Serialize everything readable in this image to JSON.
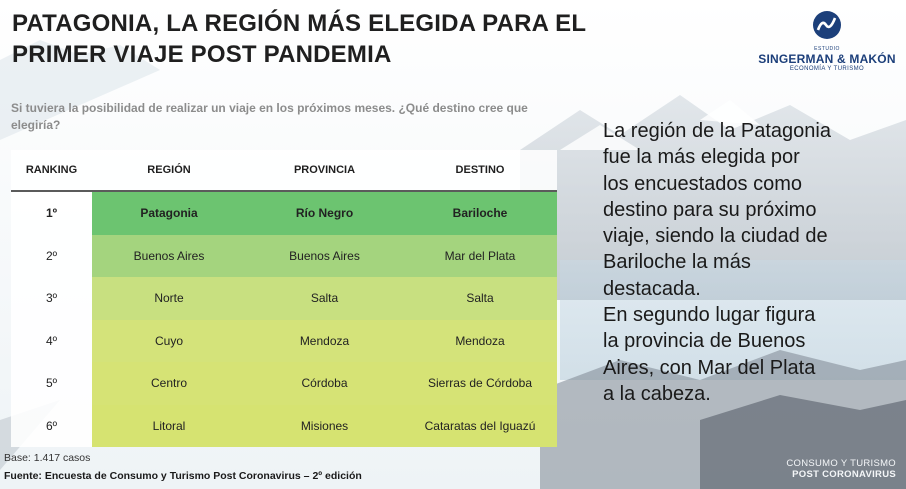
{
  "title_line1": "PATAGONIA, LA REGIÓN MÁS ELEGIDA PARA EL",
  "title_line2": "PRIMER VIAJE POST PANDEMIA",
  "logo": {
    "small_text": "ESTUDIO",
    "name": "SINGERMAN & MAKÓN",
    "subtitle": "ECONOMÍA Y TURISMO",
    "color": "#1c3f7a"
  },
  "question": "Si tuviera la posibilidad de realizar un viaje en los próximos meses. ¿Qué destino cree que elegiría?",
  "table": {
    "headers": {
      "ranking": "RANKING",
      "region": "REGIÓN",
      "provincia": "PROVINCIA",
      "destino": "DESTINO"
    },
    "rows": [
      {
        "rank": "1º",
        "region": "Patagonia",
        "provincia": "Río Negro",
        "destino": "Bariloche",
        "color": "#6cc470"
      },
      {
        "rank": "2º",
        "region": "Buenos Aires",
        "provincia": "Buenos Aires",
        "destino": "Mar del Plata",
        "color": "#a4d47e"
      },
      {
        "rank": "3º",
        "region": "Norte",
        "provincia": "Salta",
        "destino": "Salta",
        "color": "#c8e080"
      },
      {
        "rank": "4º",
        "region": "Cuyo",
        "provincia": "Mendoza",
        "destino": "Mendoza",
        "color": "#d4e37a"
      },
      {
        "rank": "5º",
        "region": "Centro",
        "provincia": "Córdoba",
        "destino": "Sierras de Córdoba",
        "color": "#d6e375"
      },
      {
        "rank": "6º",
        "region": "Litoral",
        "provincia": "Misiones",
        "destino": "Cataratas del Iguazú",
        "color": "#d6e371"
      }
    ]
  },
  "summary": [
    "La región de la Patagonia",
    "fue la más elegida por",
    "los encuestados como",
    "destino para su próximo",
    "viaje, siendo la ciudad de",
    "Bariloche la más",
    "destacada.",
    "En segundo lugar figura",
    "la provincia de Buenos",
    "Aires, con Mar del Plata",
    "a la cabeza."
  ],
  "base": "Base: 1.417 casos",
  "source": "Fuente: Encuesta de Consumo y Turismo Post Coronavirus – 2º edición",
  "footer": {
    "line1": "CONSUMO Y TURISMO",
    "line2": "POST CORONAVIRUS"
  }
}
